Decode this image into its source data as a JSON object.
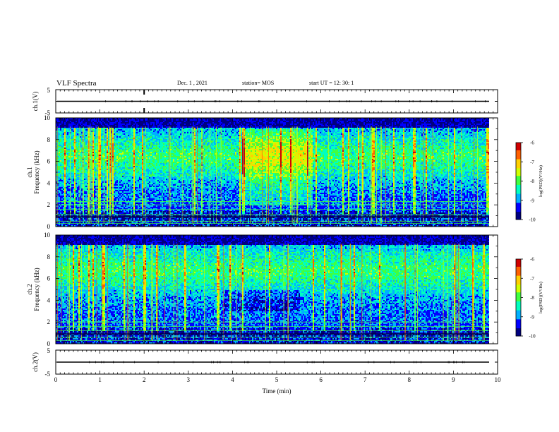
{
  "header": {
    "title": "VLF Spectra",
    "date": "Dec. 1 , 2021",
    "station": "station= MOS",
    "start": "start UT = 12: 30: 1"
  },
  "colors": {
    "background": "#ffffff",
    "spectrogram_background": "#000020",
    "colormap": [
      "#000080",
      "#0000ff",
      "#00b0ff",
      "#00ffc0",
      "#40ff40",
      "#d0ff00",
      "#ffd000",
      "#ff6000",
      "#d00000",
      "#ffffff"
    ]
  },
  "chart_data": [
    {
      "type": "line",
      "name": "voltage-ch1",
      "ylabel": "ch.1(V)",
      "ylim": [
        -5,
        5
      ],
      "yticks": [
        "5",
        "-5"
      ],
      "xlim": [
        0,
        10
      ],
      "x": [
        0,
        10
      ],
      "y": [
        0,
        0
      ]
    },
    {
      "type": "heatmap",
      "name": "spectrogram-ch1",
      "ylabel": "ch.1\nFrequency (kHz)",
      "ylim": [
        0,
        10
      ],
      "yticks": [
        "0",
        "2",
        "4",
        "6",
        "8",
        "10"
      ],
      "xlim": [
        0,
        10
      ],
      "colorbar": {
        "label": "log(PSD)(V²/Hz)",
        "range": [
          -10,
          -6
        ],
        "ticks": [
          "-6",
          "-7",
          "-8",
          "-9",
          "-10"
        ]
      },
      "activity_segments": [
        {
          "x_range": [
            0.0,
            4.2
          ],
          "band_khz": [
            2,
            9
          ],
          "level": "moderate"
        },
        {
          "x_range": [
            4.2,
            5.8
          ],
          "band_khz": [
            2,
            9
          ],
          "level": "high"
        },
        {
          "x_range": [
            5.8,
            7.4
          ],
          "band_khz": [
            2,
            9
          ],
          "level": "moderate"
        },
        {
          "x_range": [
            7.4,
            9.8
          ],
          "band_khz": [
            3,
            9
          ],
          "level": "moderate"
        }
      ]
    },
    {
      "type": "heatmap",
      "name": "spectrogram-ch2",
      "ylabel": "ch.2\nFrequency (kHz)",
      "ylim": [
        0,
        10
      ],
      "yticks": [
        "0",
        "2",
        "4",
        "6",
        "8",
        "10"
      ],
      "xlim": [
        0,
        10
      ],
      "colorbar": {
        "label": "log(PSD)(V²/Hz)",
        "range": [
          -10,
          -6
        ],
        "ticks": [
          "-6",
          "-7",
          "-8",
          "-9",
          "-10"
        ]
      },
      "activity_segments": [
        {
          "x_range": [
            0.0,
            9.8
          ],
          "band_khz": [
            2,
            9
          ],
          "level": "moderate"
        }
      ]
    },
    {
      "type": "line",
      "name": "voltage-ch2",
      "ylabel": "ch.2(V)",
      "xlabel": "Time (min)",
      "ylim": [
        -5,
        5
      ],
      "yticks": [
        "5",
        "-5"
      ],
      "xlim": [
        0,
        10
      ],
      "xticks": [
        "0",
        "1",
        "2",
        "3",
        "4",
        "5",
        "6",
        "7",
        "8",
        "9",
        "10"
      ],
      "x": [
        0,
        10
      ],
      "y": [
        0,
        0
      ]
    }
  ]
}
